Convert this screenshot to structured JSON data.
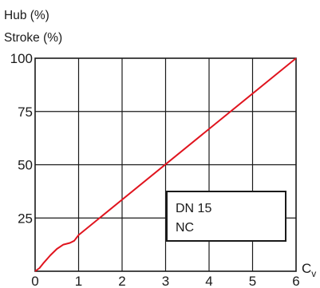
{
  "chart_data": {
    "type": "line",
    "ylabel_lines": [
      "Hub (%)",
      "Stroke (%)"
    ],
    "xlabel": "C",
    "xlabel_subscript": "v",
    "xlim": [
      0,
      6
    ],
    "ylim": [
      0,
      100
    ],
    "x_ticks": [
      0,
      1,
      2,
      3,
      4,
      5,
      6
    ],
    "y_ticks": [
      25,
      50,
      75,
      100
    ],
    "grid": true,
    "series": [
      {
        "color": "#e0141e",
        "points": [
          [
            0.0,
            0.0
          ],
          [
            0.1,
            1.5
          ],
          [
            0.2,
            4.0
          ],
          [
            0.35,
            7.5
          ],
          [
            0.5,
            10.5
          ],
          [
            0.65,
            12.5
          ],
          [
            0.8,
            13.3
          ],
          [
            0.9,
            14.3
          ],
          [
            1.0,
            17.0
          ],
          [
            6.0,
            100.0
          ]
        ]
      }
    ],
    "annotation_box": {
      "lines": [
        "DN 15",
        "NC"
      ]
    }
  }
}
